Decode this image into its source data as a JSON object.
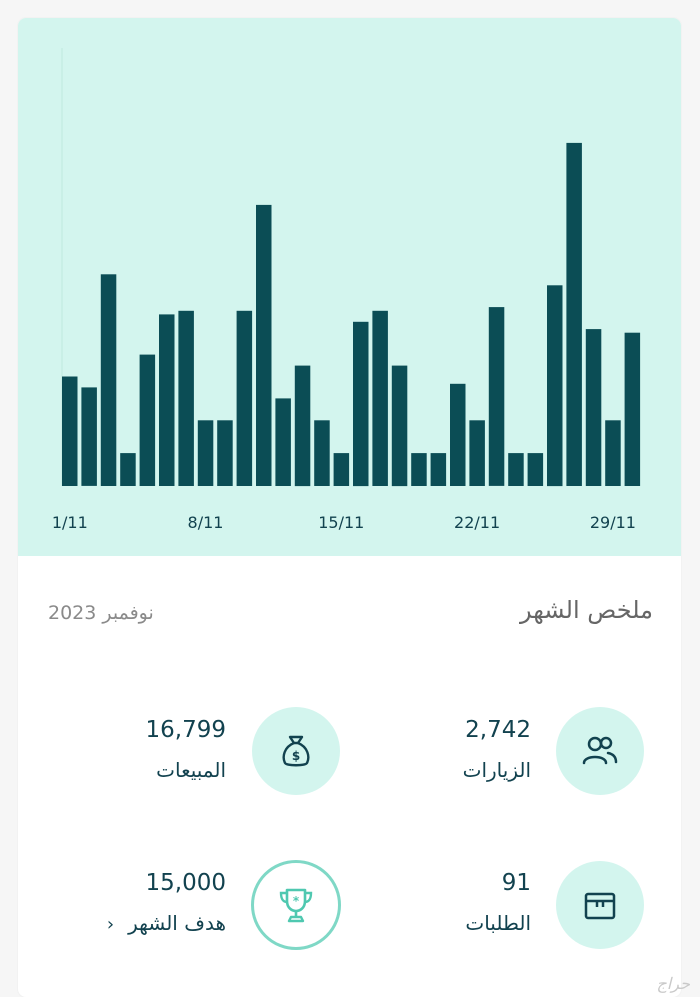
{
  "chart_data": {
    "type": "bar",
    "title": "",
    "xlabel": "",
    "ylabel": "",
    "x_tick_labels": [
      "1/11",
      "8/11",
      "15/11",
      "22/11",
      "29/11"
    ],
    "categories": [
      "1/11",
      "2/11",
      "3/11",
      "4/11",
      "5/11",
      "6/11",
      "7/11",
      "8/11",
      "9/11",
      "10/11",
      "11/11",
      "12/11",
      "13/11",
      "14/11",
      "15/11",
      "16/11",
      "17/11",
      "18/11",
      "19/11",
      "20/11",
      "21/11",
      "22/11",
      "23/11",
      "24/11",
      "25/11",
      "26/11",
      "27/11",
      "28/11",
      "29/11",
      "30/11"
    ],
    "values": [
      30,
      27,
      58,
      9,
      36,
      47,
      48,
      18,
      18,
      48,
      77,
      24,
      33,
      18,
      9,
      45,
      48,
      33,
      9,
      9,
      28,
      18,
      49,
      9,
      9,
      55,
      94,
      43,
      18,
      42
    ],
    "ylim": [
      0,
      120
    ],
    "grid": false,
    "legend": "none",
    "colors": {
      "bar": "#0b4d55",
      "background": "#d3f5ee"
    }
  },
  "summary": {
    "title": "ملخص الشهر",
    "month": "نوفمبر 2023"
  },
  "stats": {
    "visits": {
      "value": "2,742",
      "label": "الزيارات",
      "icon": "users-icon"
    },
    "sales": {
      "value": "16,799",
      "label": "المبيعات",
      "icon": "money-bag-icon"
    },
    "orders": {
      "value": "91",
      "label": "الطلبات",
      "icon": "box-icon"
    },
    "goal": {
      "value": "15,000",
      "label": "هدف الشهر",
      "icon": "trophy-icon",
      "chevron": "‹"
    }
  },
  "watermark": "حراج"
}
